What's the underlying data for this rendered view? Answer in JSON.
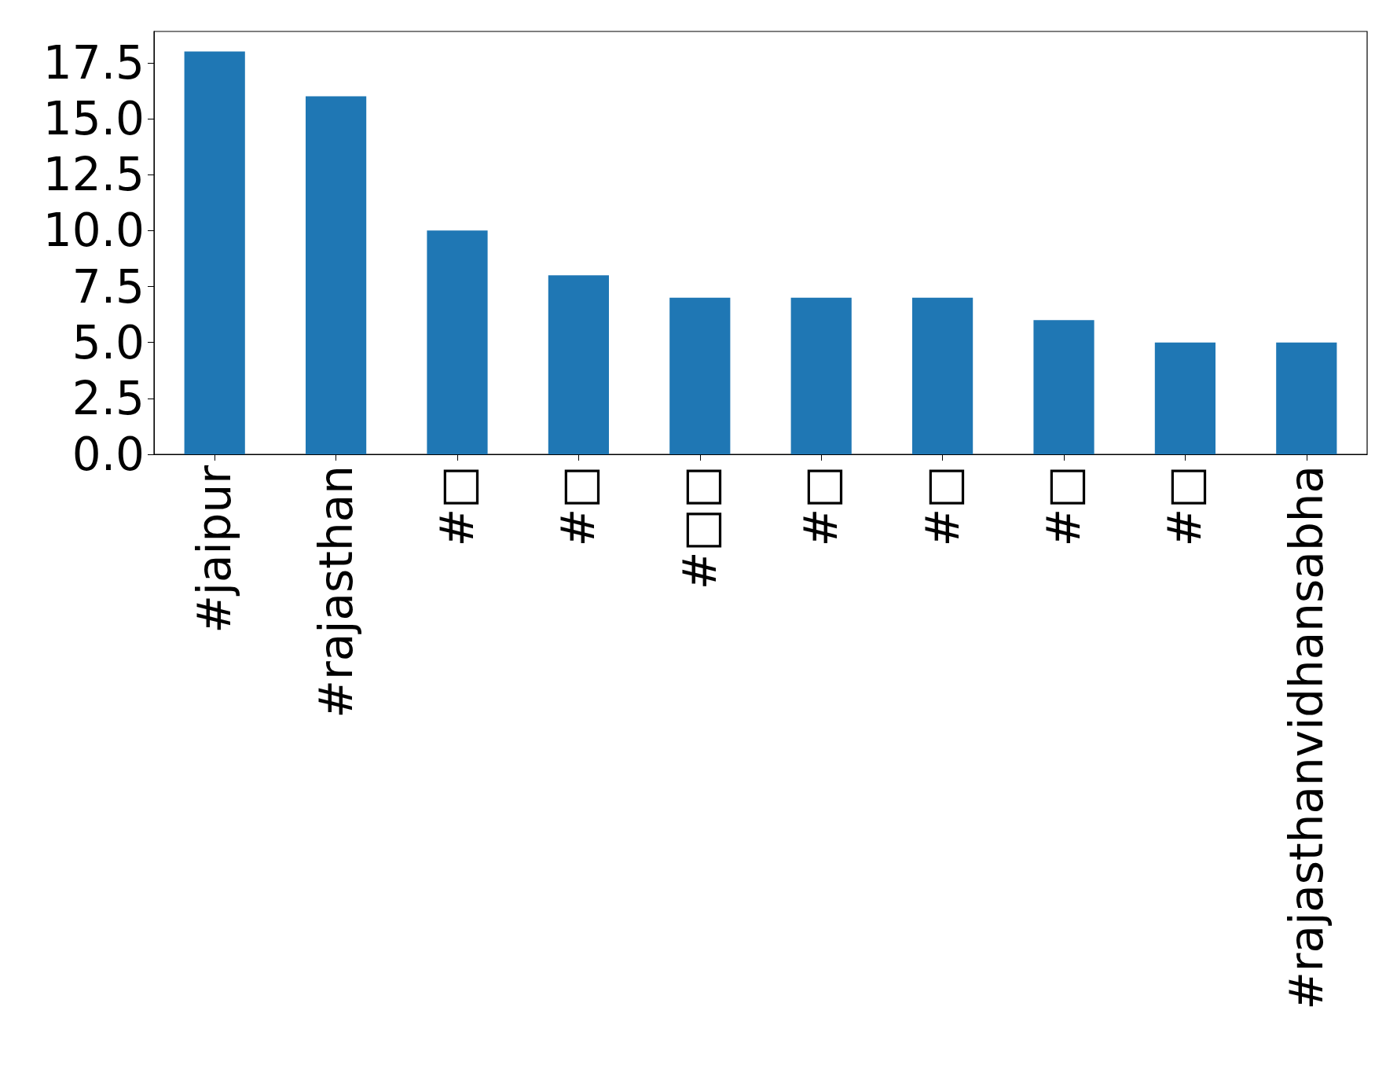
{
  "chart_data": {
    "type": "bar",
    "categories": [
      "#jaipur",
      "#rajasthan",
      "#□",
      "#□",
      "#□□",
      "#□",
      "#□",
      "#□",
      "#□",
      "#rajasthanvidhansabha"
    ],
    "values": [
      18,
      16,
      10,
      8,
      7,
      7,
      7,
      6,
      5,
      5
    ],
    "color": "#1f77b4",
    "ylim": [
      0,
      18.9
    ],
    "yticks": [
      {
        "value": 0,
        "label": "0.0"
      },
      2.5,
      {
        "value": 5,
        "label": "5.0"
      },
      7.5,
      {
        "value": 10,
        "label": "10.0"
      },
      12.5,
      {
        "value": 15,
        "label": "15.0"
      },
      17.5
    ]
  }
}
